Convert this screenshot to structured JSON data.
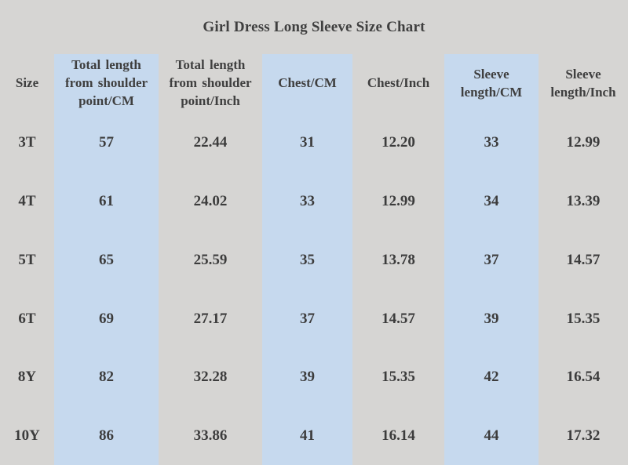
{
  "title": "Girl Dress Long Sleeve Size Chart",
  "colors": {
    "page_background": "#d6d5d3",
    "column_highlight": "#c6d9ee",
    "text": "#3e3e3e"
  },
  "chart_data": {
    "type": "table",
    "title": "Girl Dress Long Sleeve Size Chart",
    "columns": [
      "Size",
      "Total length from shoulder point/CM",
      "Total length from shoulder point/Inch",
      "Chest/CM",
      "Chest/Inch",
      "Sleeve length/CM",
      "Sleeve length/Inch"
    ],
    "highlighted_columns": [
      1,
      3,
      5
    ],
    "rows": [
      [
        "3T",
        "57",
        "22.44",
        "31",
        "12.20",
        "33",
        "12.99"
      ],
      [
        "4T",
        "61",
        "24.02",
        "33",
        "12.99",
        "34",
        "13.39"
      ],
      [
        "5T",
        "65",
        "25.59",
        "35",
        "13.78",
        "37",
        "14.57"
      ],
      [
        "6T",
        "69",
        "27.17",
        "37",
        "14.57",
        "39",
        "15.35"
      ],
      [
        "8Y",
        "82",
        "32.28",
        "39",
        "15.35",
        "42",
        "16.54"
      ],
      [
        "10Y",
        "86",
        "33.86",
        "41",
        "16.14",
        "44",
        "17.32"
      ]
    ]
  }
}
